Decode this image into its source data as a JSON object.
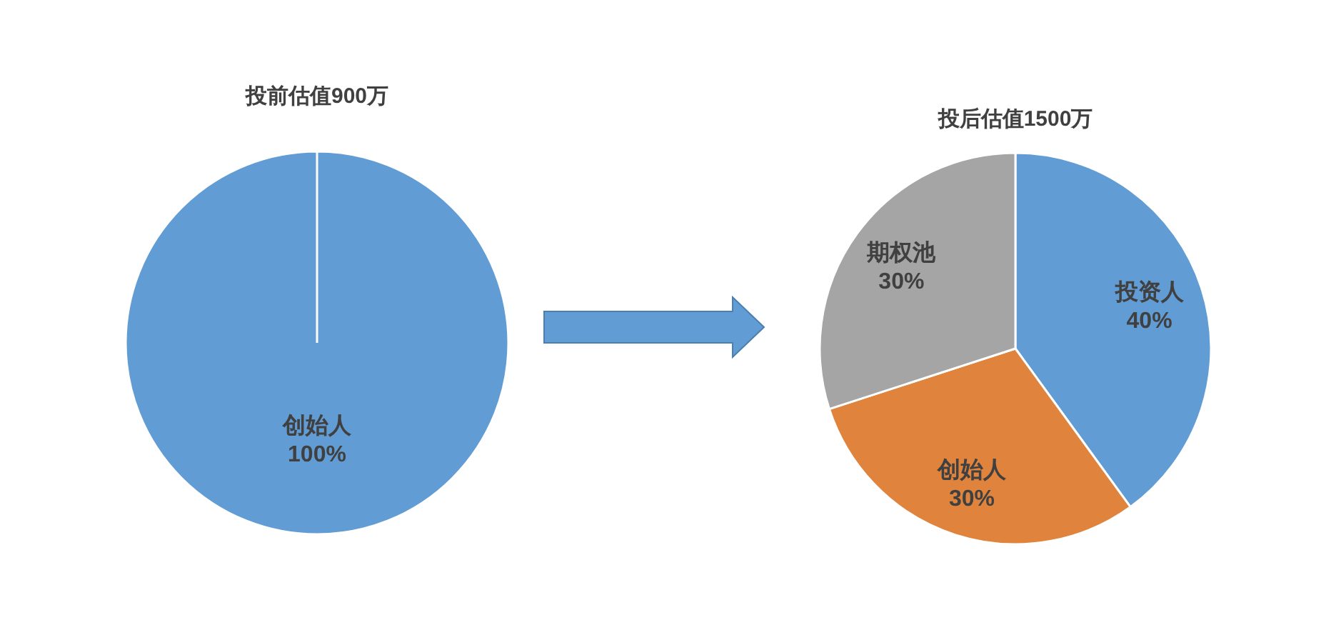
{
  "chart_data": [
    {
      "type": "pie",
      "title": "投前估值900万",
      "categories": [
        "创始人"
      ],
      "values": [
        100
      ],
      "colors": [
        "#619dd4"
      ],
      "value_labels": [
        "100%"
      ]
    },
    {
      "type": "pie",
      "title": "投后估值1500万",
      "categories": [
        "投资人",
        "创始人",
        "期权池"
      ],
      "values": [
        40,
        30,
        30
      ],
      "colors": [
        "#619dd4",
        "#e0843d",
        "#a5a5a5"
      ],
      "value_labels": [
        "40%",
        "30%",
        "30%"
      ]
    }
  ]
}
